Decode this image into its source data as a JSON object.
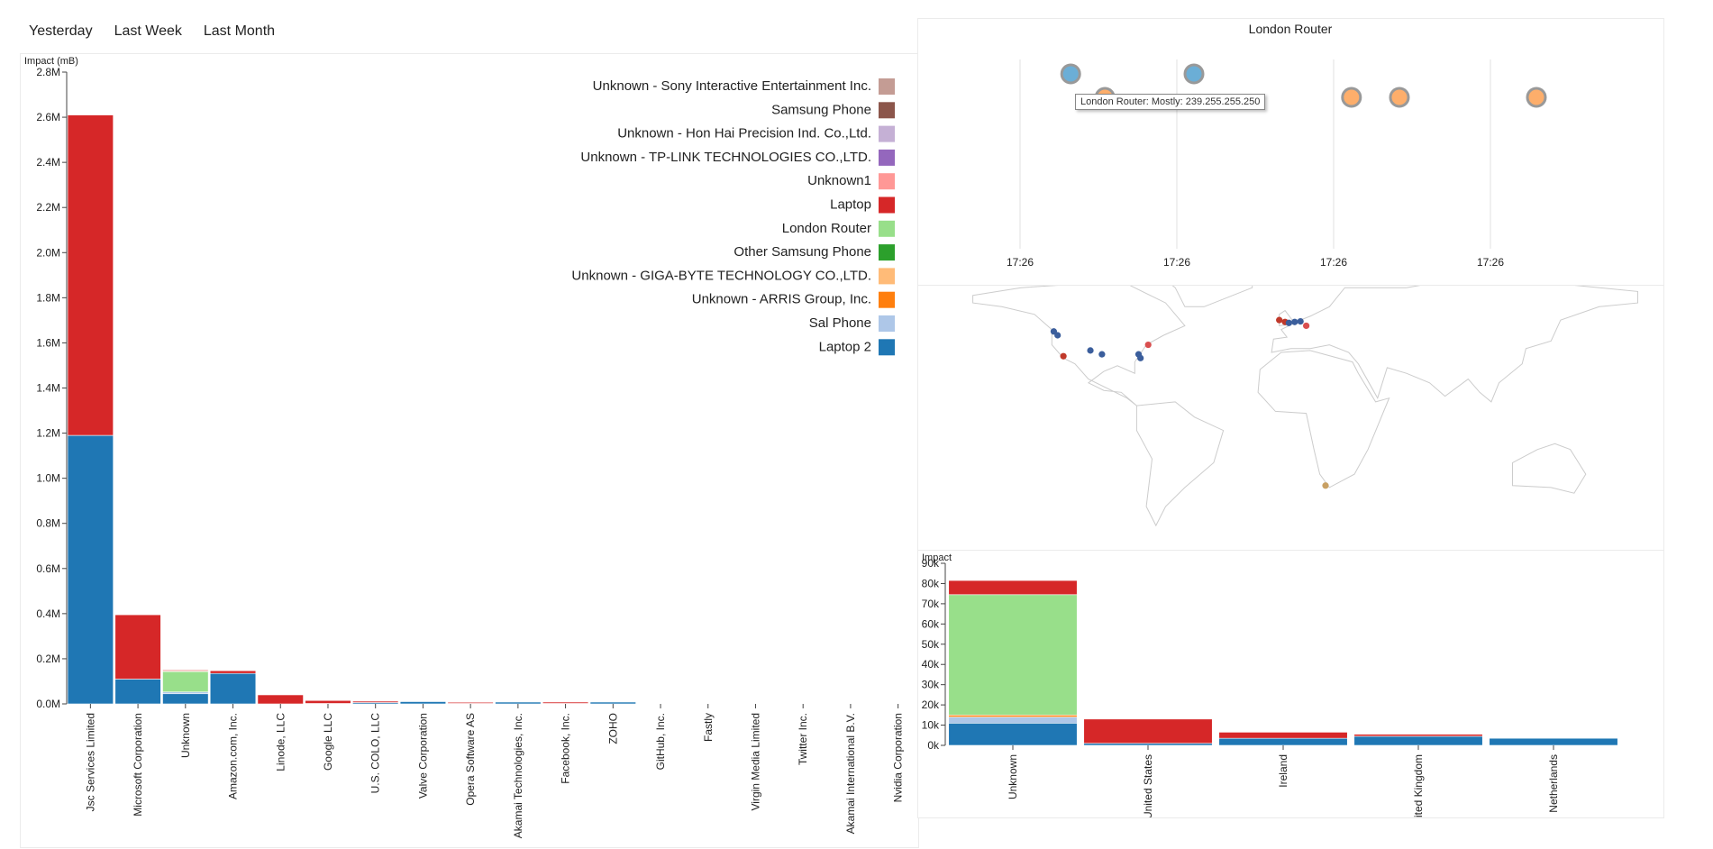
{
  "time_tabs": [
    "Yesterday",
    "Last Week",
    "Last Month"
  ],
  "chart_data": [
    {
      "id": "org",
      "type": "bar",
      "stacked": true,
      "ylabel": "Impact (mB)",
      "ylim": [
        0,
        2800000
      ],
      "y_ticks": [
        0,
        200000,
        400000,
        600000,
        800000,
        1000000,
        1200000,
        1400000,
        1600000,
        1800000,
        2000000,
        2200000,
        2400000,
        2600000,
        2800000
      ],
      "y_tick_labels": [
        "0.0M",
        "0.2M",
        "0.4M",
        "0.6M",
        "0.8M",
        "1.0M",
        "1.2M",
        "1.4M",
        "1.6M",
        "1.8M",
        "2.0M",
        "2.2M",
        "2.4M",
        "2.6M",
        "2.8M"
      ],
      "categories": [
        "Jsc Services Limited",
        "Microsoft Corporation",
        "Unknown",
        "Amazon.com, Inc.",
        "Linode, LLC",
        "Google LLC",
        "U.S. COLO, LLC",
        "Valve Corporation",
        "Opera Software AS",
        "Akamai Technologies, Inc.",
        "Facebook, Inc.",
        "ZOHO",
        "GitHub, Inc.",
        "Fastly",
        "Virgin Media Limited",
        "Twitter Inc.",
        "Akamai International B.V.",
        "Nvidia Corporation"
      ],
      "series": [
        {
          "name": "Laptop 2",
          "color": "#1f77b4",
          "values": [
            1190000,
            110000,
            45000,
            135000,
            0,
            2000,
            6000,
            10000,
            2000,
            8000,
            2000,
            8000,
            2000,
            0,
            0,
            0,
            0,
            0
          ]
        },
        {
          "name": "Sal Phone",
          "color": "#aec7e8",
          "values": [
            0,
            0,
            8000,
            0,
            0,
            0,
            0,
            0,
            0,
            0,
            0,
            0,
            0,
            0,
            0,
            0,
            0,
            0
          ]
        },
        {
          "name": "London Router",
          "color": "#98df8a",
          "values": [
            0,
            0,
            90000,
            0,
            0,
            0,
            0,
            0,
            0,
            0,
            0,
            0,
            0,
            0,
            0,
            0,
            0,
            0
          ]
        },
        {
          "name": "Unknown - ARRIS Group, Inc.",
          "color": "#ff7f0e",
          "values": [
            0,
            0,
            3000,
            0,
            0,
            0,
            0,
            0,
            0,
            0,
            0,
            0,
            0,
            0,
            0,
            0,
            0,
            0
          ]
        },
        {
          "name": "Laptop",
          "color": "#d62728",
          "values": [
            1420000,
            285000,
            4000,
            12000,
            40000,
            13000,
            6000,
            0,
            5000,
            0,
            6000,
            0,
            0,
            0,
            0,
            0,
            0,
            0
          ]
        }
      ],
      "legend": [
        {
          "name": "Unknown - Sony Interactive Entertainment Inc.",
          "color": "#c49c94"
        },
        {
          "name": "Samsung Phone",
          "color": "#8c564b"
        },
        {
          "name": "Unknown - Hon Hai Precision Ind. Co.,Ltd.",
          "color": "#c5b0d5"
        },
        {
          "name": "Unknown - TP-LINK TECHNOLOGIES CO.,LTD.",
          "color": "#9467bd"
        },
        {
          "name": "Unknown1",
          "color": "#ff9896"
        },
        {
          "name": "Laptop",
          "color": "#d62728"
        },
        {
          "name": "London Router",
          "color": "#98df8a"
        },
        {
          "name": "Other Samsung Phone",
          "color": "#2ca02c"
        },
        {
          "name": "Unknown - GIGA-BYTE TECHNOLOGY CO.,LTD.",
          "color": "#ffbb78"
        },
        {
          "name": "Unknown - ARRIS Group, Inc.",
          "color": "#ff7f0e"
        },
        {
          "name": "Sal Phone",
          "color": "#aec7e8"
        },
        {
          "name": "Laptop 2",
          "color": "#1f77b4"
        }
      ]
    },
    {
      "id": "timeline",
      "type": "scatter",
      "title": "London Router",
      "x_tick_labels": [
        "17:26",
        "17:26",
        "17:26",
        "17:26"
      ],
      "points": [
        {
          "t": 0.17,
          "row": 0,
          "color": "#6baed6"
        },
        {
          "t": 0.22,
          "row": 1,
          "color": "#fdae6b"
        },
        {
          "t": 0.35,
          "row": 0,
          "color": "#6baed6"
        },
        {
          "t": 0.58,
          "row": 1,
          "color": "#fdae6b"
        },
        {
          "t": 0.65,
          "row": 1,
          "color": "#fdae6b"
        },
        {
          "t": 0.85,
          "row": 1,
          "color": "#fdae6b"
        }
      ],
      "tooltip": "London Router: Mostly: 239.255.255.250"
    },
    {
      "id": "country",
      "type": "bar",
      "stacked": true,
      "ylabel": "Impact",
      "ylim": [
        0,
        90000
      ],
      "y_ticks": [
        0,
        10000,
        20000,
        30000,
        40000,
        50000,
        60000,
        70000,
        80000,
        90000
      ],
      "y_tick_labels": [
        "0k",
        "10k",
        "20k",
        "30k",
        "40k",
        "50k",
        "60k",
        "70k",
        "80k",
        "90k"
      ],
      "categories": [
        "Unknown",
        "United States",
        "Ireland",
        "United Kingdom",
        "Netherlands"
      ],
      "series": [
        {
          "name": "Laptop 2",
          "color": "#1f77b4",
          "values": [
            11000,
            1000,
            3500,
            4500,
            3500
          ]
        },
        {
          "name": "Sal Phone",
          "color": "#aec7e8",
          "values": [
            3000,
            0,
            0,
            0,
            0
          ]
        },
        {
          "name": "Unknown - ARRIS Group, Inc.",
          "color": "#ff7f0e",
          "values": [
            1000,
            0,
            0,
            0,
            0
          ]
        },
        {
          "name": "London Router",
          "color": "#98df8a",
          "values": [
            59500,
            0,
            0,
            0,
            0
          ]
        },
        {
          "name": "Laptop",
          "color": "#d62728",
          "values": [
            7000,
            12000,
            3000,
            1000,
            0
          ]
        }
      ]
    }
  ],
  "map": {
    "markers": [
      {
        "lon": -123,
        "lat": 47,
        "color": "#3b5e9c"
      },
      {
        "lon": -121,
        "lat": 45,
        "color": "#3b5e9c"
      },
      {
        "lon": -118,
        "lat": 34,
        "color": "#c0392b"
      },
      {
        "lon": -104,
        "lat": 37,
        "color": "#3b5e9c"
      },
      {
        "lon": -98,
        "lat": 35,
        "color": "#3b5e9c"
      },
      {
        "lon": -79,
        "lat": 35,
        "color": "#3b5e9c"
      },
      {
        "lon": -78,
        "lat": 33,
        "color": "#3b5e9c"
      },
      {
        "lon": -74,
        "lat": 40,
        "color": "#d94f4f"
      },
      {
        "lon": -6,
        "lat": 53,
        "color": "#c0392b"
      },
      {
        "lon": -3,
        "lat": 52,
        "color": "#c0392b"
      },
      {
        "lon": -1,
        "lat": 51.5,
        "color": "#3b5e9c"
      },
      {
        "lon": 2,
        "lat": 52,
        "color": "#3b5e9c"
      },
      {
        "lon": 5,
        "lat": 52.3,
        "color": "#3b5e9c"
      },
      {
        "lon": 8,
        "lat": 50,
        "color": "#d94f4f"
      },
      {
        "lon": 18,
        "lat": -34,
        "color": "#c8a063"
      }
    ]
  }
}
